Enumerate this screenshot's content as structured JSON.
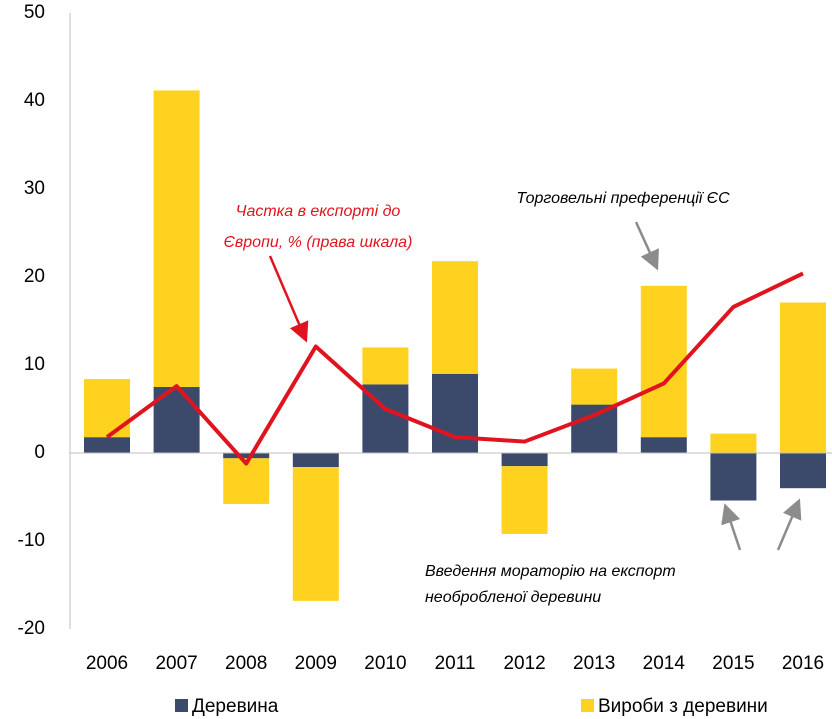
{
  "chart_data": {
    "type": "bar",
    "stacked": true,
    "categories": [
      "2006",
      "2007",
      "2008",
      "2009",
      "2010",
      "2011",
      "2012",
      "2013",
      "2014",
      "2015",
      "2016"
    ],
    "series": [
      {
        "name": "Деревина",
        "color": "#3b4a6b",
        "values": [
          1.8,
          7.5,
          -0.6,
          -1.6,
          7.8,
          9.0,
          -1.5,
          5.5,
          1.8,
          -5.4,
          -4.0
        ]
      },
      {
        "name": "Вироби з деревини",
        "color": "#ffd21f",
        "values": [
          6.6,
          33.7,
          -5.2,
          -15.2,
          4.2,
          12.8,
          -7.7,
          4.1,
          17.2,
          2.2,
          17.1
        ]
      },
      {
        "type": "line",
        "color": "#e0141e",
        "values": [
          1.8,
          7.6,
          -1.2,
          12.1,
          5.0,
          1.8,
          1.3,
          4.3,
          7.9,
          16.6,
          20.4
        ]
      }
    ],
    "ylim": [
      -20,
      50
    ],
    "yticks": [
      -20,
      -10,
      0,
      10,
      20,
      30,
      40,
      50
    ],
    "annotations": [
      "Частка в експорті до",
      "Європи, % (права шкала)",
      "Торговельні преференції ЄС",
      "Введення мораторію на експорт",
      "необробленої деревини"
    ]
  }
}
